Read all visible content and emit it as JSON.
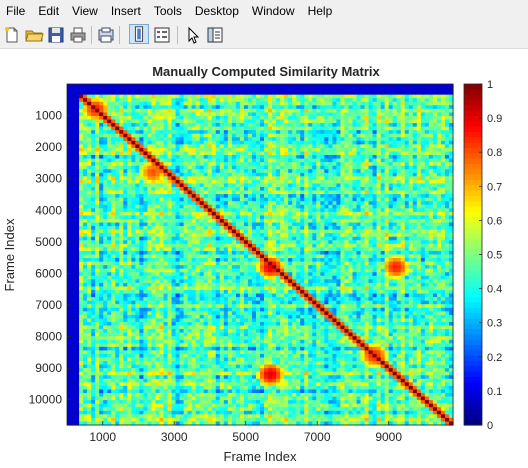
{
  "menu": {
    "items": [
      "File",
      "Edit",
      "View",
      "Insert",
      "Tools",
      "Desktop",
      "Window",
      "Help"
    ]
  },
  "toolbar": {
    "icons": [
      "new-file-icon",
      "open-folder-icon",
      "save-icon",
      "print-icon",
      "print-preview-icon",
      "colorbar-toggle-icon",
      "legend-toggle-icon",
      "edit-plot-arrow-icon",
      "property-inspector-icon"
    ]
  },
  "colors": {
    "colormap": "jet",
    "background": "#ffffff",
    "window": "#f0f0f0"
  },
  "chart_data": {
    "type": "heatmap",
    "title": "Manually Computed Similarity Matrix",
    "xlabel": "Frame Index",
    "ylabel": "Frame Index",
    "xlim": [
      0,
      10800
    ],
    "ylim": [
      0,
      10800
    ],
    "xticks": [
      1000,
      3000,
      5000,
      7000,
      9000
    ],
    "yticks": [
      1000,
      2000,
      3000,
      4000,
      5000,
      6000,
      7000,
      8000,
      9000,
      10000
    ],
    "colorbar": {
      "ticks": [
        0,
        0.1,
        0.2,
        0.3,
        0.4,
        0.5,
        0.6,
        0.7,
        0.8,
        0.9,
        1
      ],
      "tick_labels": [
        "0",
        "0.1",
        "0.2",
        "0.3",
        "0.4",
        "0.5",
        "0.6",
        "0.7",
        "0.8",
        "0.9",
        "1"
      ],
      "limits": [
        0,
        1
      ],
      "colormap": "jet"
    },
    "diagonal_value": 1,
    "background_similarity": 0.45,
    "padding_region_value": 0,
    "padding_frames": 300,
    "high_similarity_blocks": [
      {
        "center": [
          5700,
          9200
        ],
        "value": 0.9
      },
      {
        "center": [
          5700,
          5800
        ],
        "value": 0.9
      },
      {
        "center": [
          9200,
          5800
        ],
        "value": 0.85
      },
      {
        "center": [
          8600,
          8600
        ],
        "value": 0.85
      },
      {
        "center": [
          2400,
          2800
        ],
        "value": 0.8
      },
      {
        "center": [
          800,
          800
        ],
        "value": 0.85
      }
    ]
  }
}
